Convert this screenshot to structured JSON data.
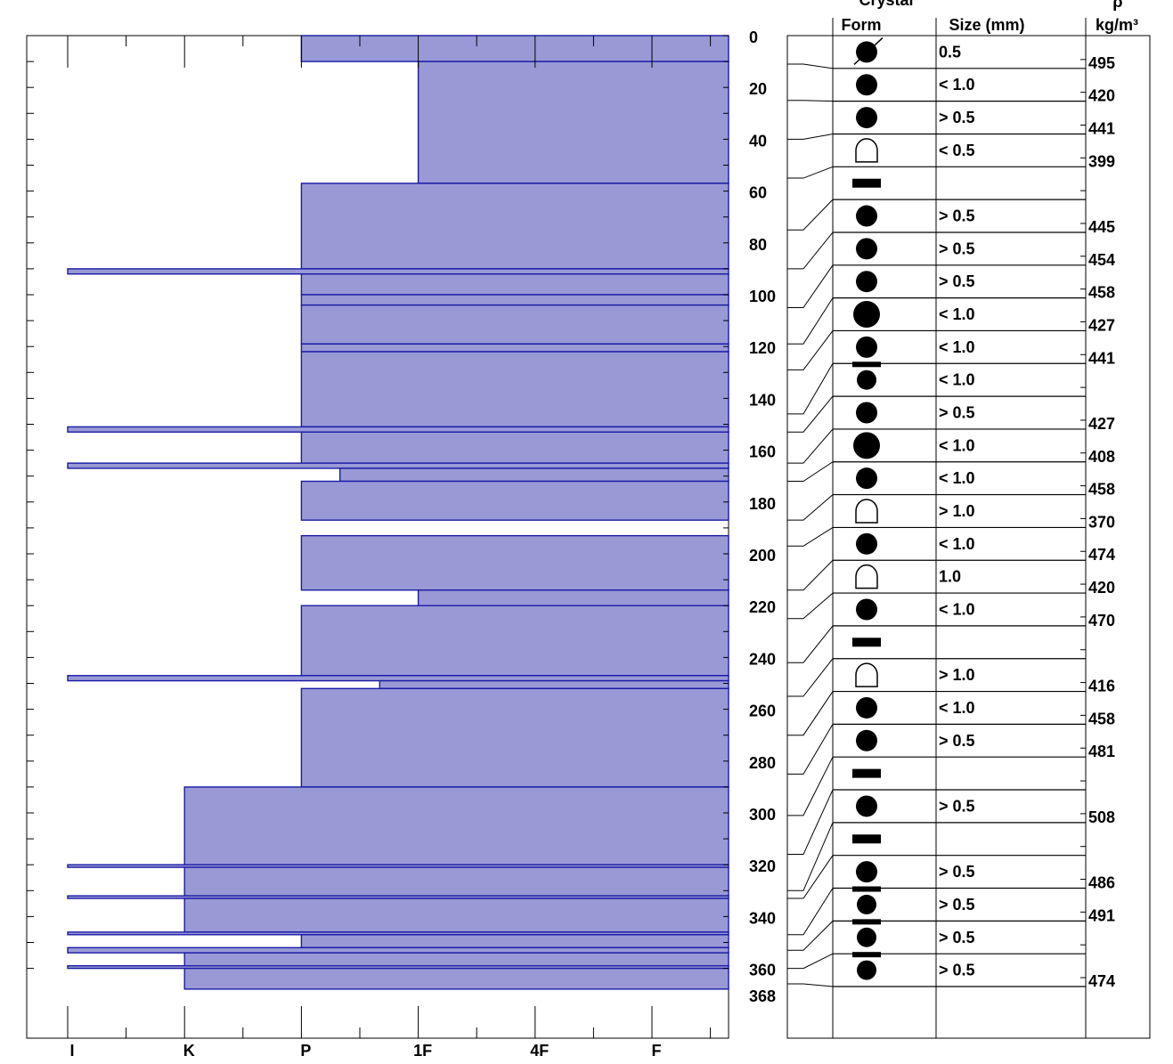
{
  "chart_data": {
    "type": "bar",
    "bar_color": "#9999d6",
    "edge_color": "#1a1aa6",
    "hardness_ticks": [
      "I",
      "K",
      "P",
      "1F",
      "4F",
      "F"
    ],
    "depth_ticks": [
      0,
      20,
      40,
      60,
      80,
      100,
      120,
      140,
      160,
      180,
      200,
      220,
      240,
      260,
      280,
      300,
      320,
      340,
      360,
      368
    ],
    "ylim": [
      0,
      368
    ],
    "hardness_layers": [
      {
        "top": 0,
        "bottom": 10,
        "hardness": 2
      },
      {
        "top": 10,
        "bottom": 57,
        "hardness": 3
      },
      {
        "top": 57,
        "bottom": 90,
        "hardness": 2
      },
      {
        "top": 90,
        "bottom": 92,
        "hardness": 0
      },
      {
        "top": 92,
        "bottom": 100,
        "hardness": 2
      },
      {
        "top": 100,
        "bottom": 104,
        "hardness": 2
      },
      {
        "top": 104,
        "bottom": 119,
        "hardness": 2
      },
      {
        "top": 119,
        "bottom": 122,
        "hardness": 2
      },
      {
        "top": 122,
        "bottom": 151,
        "hardness": 2
      },
      {
        "top": 151,
        "bottom": 153,
        "hardness": 0
      },
      {
        "top": 153,
        "bottom": 165,
        "hardness": 2
      },
      {
        "top": 165,
        "bottom": 167,
        "hardness": 0
      },
      {
        "top": 167,
        "bottom": 172,
        "hardness": 2.33
      },
      {
        "top": 172,
        "bottom": 187,
        "hardness": 2
      },
      {
        "top": 187,
        "bottom": 193,
        "hardness": 5.67
      },
      {
        "top": 193,
        "bottom": 214,
        "hardness": 2
      },
      {
        "top": 214,
        "bottom": 220,
        "hardness": 3
      },
      {
        "top": 220,
        "bottom": 247,
        "hardness": 2
      },
      {
        "top": 247,
        "bottom": 249,
        "hardness": 0
      },
      {
        "top": 249,
        "bottom": 252,
        "hardness": 2.67
      },
      {
        "top": 252,
        "bottom": 290,
        "hardness": 2
      },
      {
        "top": 290,
        "bottom": 320,
        "hardness": 1
      },
      {
        "top": 320,
        "bottom": 321,
        "hardness": 0
      },
      {
        "top": 321,
        "bottom": 332,
        "hardness": 1
      },
      {
        "top": 332,
        "bottom": 333,
        "hardness": 0
      },
      {
        "top": 333,
        "bottom": 346,
        "hardness": 1
      },
      {
        "top": 346,
        "bottom": 347,
        "hardness": 0
      },
      {
        "top": 347,
        "bottom": 352,
        "hardness": 2
      },
      {
        "top": 352,
        "bottom": 354,
        "hardness": 0
      },
      {
        "top": 354,
        "bottom": 359,
        "hardness": 1
      },
      {
        "top": 359,
        "bottom": 360,
        "hardness": 0
      },
      {
        "top": 360,
        "bottom": 368,
        "hardness": 1
      }
    ],
    "headers": {
      "crystal": "Crystal",
      "form": "Form",
      "size": "Size (mm)",
      "rho": "ρ",
      "density_unit": "kg/m³"
    },
    "crystal_rows": [
      {
        "depth_top": 0,
        "depth_bottom": 11,
        "form": "melt-freeze-slash",
        "size": "0.5",
        "density": "495"
      },
      {
        "depth_top": 11,
        "depth_bottom": 25,
        "form": "round",
        "size": "< 1.0",
        "density": "420"
      },
      {
        "depth_top": 25,
        "depth_bottom": 40,
        "form": "round",
        "size": "> 0.5",
        "density": "441"
      },
      {
        "depth_top": 40,
        "depth_bottom": 55,
        "form": "depth-hoar",
        "size": "< 0.5",
        "density": "399"
      },
      {
        "depth_top": 55,
        "depth_bottom": 75,
        "form": "bar",
        "size": "",
        "density": ""
      },
      {
        "depth_top": 75,
        "depth_bottom": 90,
        "form": "round",
        "size": "> 0.5",
        "density": "445"
      },
      {
        "depth_top": 90,
        "depth_bottom": 105,
        "form": "round",
        "size": "> 0.5",
        "density": "454"
      },
      {
        "depth_top": 105,
        "depth_bottom": 119,
        "form": "round",
        "size": "> 0.5",
        "density": "458"
      },
      {
        "depth_top": 119,
        "depth_bottom": 129,
        "form": "round-large",
        "size": "< 1.0",
        "density": "427"
      },
      {
        "depth_top": 129,
        "depth_bottom": 146,
        "form": "round",
        "size": "< 1.0",
        "density": "441"
      },
      {
        "depth_top": 146,
        "depth_bottom": 153,
        "form": "round-bar",
        "size": "< 1.0",
        "density": ""
      },
      {
        "depth_top": 153,
        "depth_bottom": 165,
        "form": "round",
        "size": "> 0.5",
        "density": "427"
      },
      {
        "depth_top": 165,
        "depth_bottom": 172,
        "form": "round-large",
        "size": "< 1.0",
        "density": "408"
      },
      {
        "depth_top": 172,
        "depth_bottom": 187,
        "form": "round",
        "size": "< 1.0",
        "density": "458"
      },
      {
        "depth_top": 187,
        "depth_bottom": 197,
        "form": "depth-hoar",
        "size": "> 1.0",
        "density": "370"
      },
      {
        "depth_top": 197,
        "depth_bottom": 214,
        "form": "round",
        "size": "< 1.0",
        "density": "474"
      },
      {
        "depth_top": 214,
        "depth_bottom": 225,
        "form": "depth-hoar",
        "size": "1.0",
        "density": "420"
      },
      {
        "depth_top": 225,
        "depth_bottom": 242,
        "form": "round",
        "size": "< 1.0",
        "density": "470"
      },
      {
        "depth_top": 242,
        "depth_bottom": 255,
        "form": "bar",
        "size": "",
        "density": ""
      },
      {
        "depth_top": 255,
        "depth_bottom": 270,
        "form": "depth-hoar",
        "size": "> 1.0",
        "density": "416"
      },
      {
        "depth_top": 270,
        "depth_bottom": 285,
        "form": "round",
        "size": "< 1.0",
        "density": "458"
      },
      {
        "depth_top": 285,
        "depth_bottom": 301,
        "form": "round",
        "size": "> 0.5",
        "density": "481"
      },
      {
        "depth_top": 301,
        "depth_bottom": 316,
        "form": "bar",
        "size": "",
        "density": ""
      },
      {
        "depth_top": 316,
        "depth_bottom": 330,
        "form": "round",
        "size": "> 0.5",
        "density": "508"
      },
      {
        "depth_top": 330,
        "depth_bottom": 333,
        "form": "bar",
        "size": "",
        "density": ""
      },
      {
        "depth_top": 333,
        "depth_bottom": 347,
        "form": "round",
        "size": "> 0.5",
        "density": "486"
      },
      {
        "depth_top": 347,
        "depth_bottom": 353,
        "form": "round-bar",
        "size": "> 0.5",
        "density": "491"
      },
      {
        "depth_top": 353,
        "depth_bottom": 360,
        "form": "round-bar",
        "size": "> 0.5",
        "density": ""
      },
      {
        "depth_top": 360,
        "depth_bottom": 366,
        "form": "round-bar",
        "size": "> 0.5",
        "density": "474"
      }
    ]
  }
}
